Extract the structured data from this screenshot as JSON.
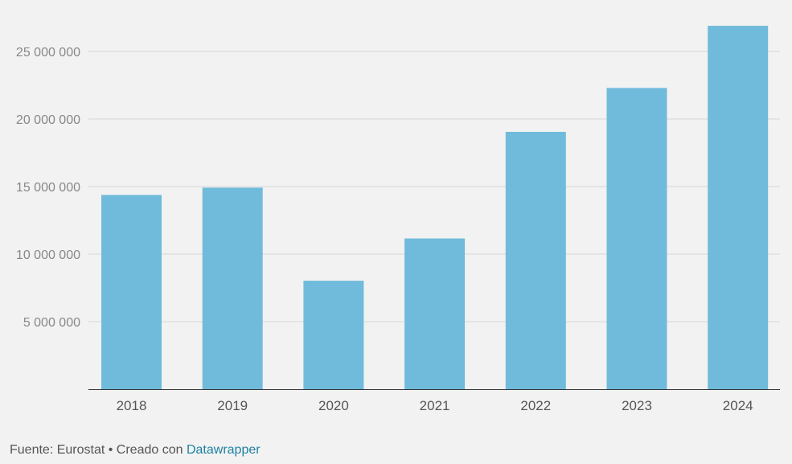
{
  "chart_data": {
    "type": "bar",
    "title": "",
    "xlabel": "",
    "ylabel": "",
    "categories": [
      "2018",
      "2019",
      "2020",
      "2021",
      "2022",
      "2023",
      "2024"
    ],
    "values": [
      14380000,
      14920000,
      8030000,
      11160000,
      19050000,
      22300000,
      26900000
    ],
    "ylim": [
      0,
      27000000
    ],
    "yticks": [
      5000000,
      10000000,
      15000000,
      20000000,
      25000000
    ],
    "ytick_labels": [
      "5 000 000",
      "10 000 000",
      "15 000 000",
      "20 000 000",
      "25 000 000"
    ],
    "grid": true,
    "bar_color": "#70bbdb"
  },
  "footer": {
    "source_text": "Fuente: Eurostat",
    "separator": " • ",
    "created_with": "Creado con ",
    "link_text": "Datawrapper",
    "link_color": "#1d81a2"
  }
}
